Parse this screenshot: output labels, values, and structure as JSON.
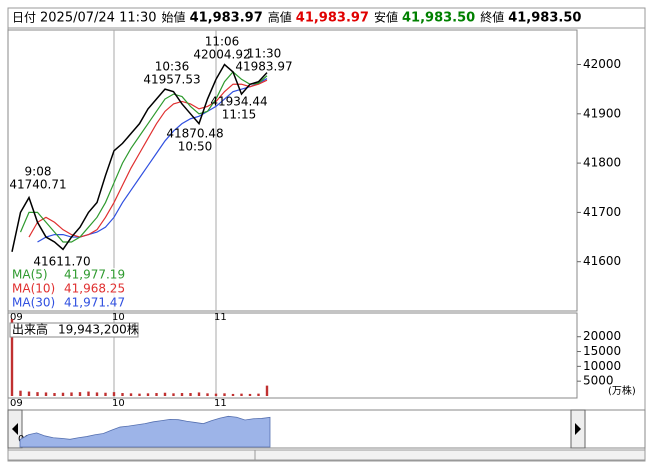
{
  "chart_data": {
    "type": "line",
    "header": {
      "fields": [
        {
          "name": "日付",
          "label": "2025/07/24 11:30",
          "color": "#000000"
        },
        {
          "name": "始値",
          "value": 41983.97,
          "label": "41,983.97",
          "color": "#000000"
        },
        {
          "name": "高値",
          "value": 41983.97,
          "label": "41,983.97",
          "color": "#e00000"
        },
        {
          "name": "安値",
          "value": 41983.5,
          "label": "41,983.50",
          "color": "#008000"
        },
        {
          "name": "終値",
          "value": 41983.5,
          "label": "41,983.50",
          "color": "#000000"
        }
      ]
    },
    "categories": [
      "09",
      null,
      null,
      null,
      null,
      null,
      null,
      null,
      null,
      null,
      null,
      null,
      "10",
      null,
      null,
      null,
      null,
      null,
      null,
      null,
      null,
      null,
      null,
      null,
      "11",
      null,
      null,
      null,
      null,
      null,
      null
    ],
    "values": [
      41620,
      41700,
      41730,
      41680,
      41650,
      41640,
      41625,
      41650,
      41670,
      41700,
      41720,
      41775,
      41825,
      41840,
      41860,
      41880,
      41910,
      41930,
      41950,
      41945,
      41920,
      41900,
      41880,
      41930,
      41970,
      42000,
      41985,
      41940,
      41960,
      41965,
      41983.5
    ],
    "color": "#000000",
    "series": [
      {
        "name": "MA(5)",
        "color": "#2e9a2e",
        "last_label": "41,977.19",
        "values": [
          null,
          41660,
          41700,
          41700,
          41680,
          41660,
          41640,
          41640,
          41650,
          41670,
          41690,
          41720,
          41760,
          41800,
          41830,
          41855,
          41880,
          41905,
          41930,
          41940,
          41935,
          41915,
          41900,
          41905,
          41930,
          41965,
          41985,
          41970,
          41960,
          41962,
          41977.19
        ]
      },
      {
        "name": "MA(10)",
        "color": "#e03030",
        "last_label": "41,968.25",
        "values": [
          null,
          null,
          41650,
          41680,
          41690,
          41680,
          41665,
          41655,
          41650,
          41655,
          41665,
          41690,
          41720,
          41755,
          41790,
          41820,
          41850,
          41880,
          41905,
          41920,
          41925,
          41920,
          41910,
          41915,
          41925,
          41945,
          41960,
          41960,
          41955,
          41960,
          41968.25
        ]
      },
      {
        "name": "MA(30)",
        "color": "#3050e0",
        "last_label": "41,971.47",
        "values": [
          null,
          null,
          null,
          41640,
          41650,
          41655,
          41655,
          41650,
          41650,
          41655,
          41660,
          41670,
          41690,
          41720,
          41745,
          41770,
          41795,
          41820,
          41845,
          41865,
          41880,
          41890,
          41895,
          41905,
          41915,
          41930,
          41945,
          41950,
          41955,
          41962,
          41971.47
        ]
      }
    ],
    "ylim": [
      41500,
      42070
    ],
    "yticks": [
      41600,
      41700,
      41800,
      41900,
      42000
    ],
    "annotations": [
      {
        "lines": [
          "9:08",
          "41740.71"
        ]
      },
      {
        "lines": [
          "41611.70"
        ]
      },
      {
        "lines": [
          "10:36",
          "41957.53"
        ]
      },
      {
        "lines": [
          "41870.48",
          "10:50"
        ]
      },
      {
        "lines": [
          "11:06",
          "42004.92"
        ]
      },
      {
        "lines": [
          "11:30",
          "41983.97"
        ]
      },
      {
        "lines": [
          "41934.44",
          "11:15"
        ]
      }
    ],
    "volume": {
      "title": "出来高",
      "total_label": "19,943,200株",
      "unit": "(万株)",
      "color": "#c03030",
      "values": [
        26000,
        1800,
        1500,
        1300,
        1200,
        1000,
        1100,
        1200,
        1300,
        1500,
        1200,
        1100,
        1300,
        1000,
        900,
        800,
        900,
        1000,
        1100,
        900,
        1000,
        1000,
        1200,
        900,
        800,
        900,
        700,
        800,
        700,
        800,
        3500
      ],
      "ylim": [
        0,
        28000
      ],
      "yticks": [
        5000,
        10000,
        15000,
        20000
      ]
    },
    "navigator_color": "#9db4e8"
  }
}
